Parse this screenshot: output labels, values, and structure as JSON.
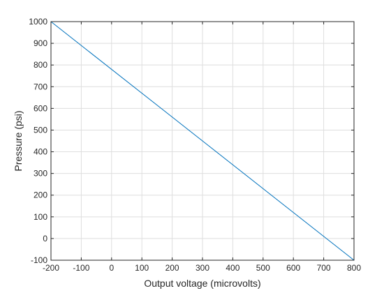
{
  "chart_data": {
    "type": "line",
    "title": "",
    "xlabel": "Output voltage (microvolts)",
    "ylabel": "Pressure (psi)",
    "xlim": [
      -200,
      800
    ],
    "ylim": [
      -100,
      1000
    ],
    "xticks": [
      -200,
      -100,
      0,
      100,
      200,
      300,
      400,
      500,
      600,
      700,
      800
    ],
    "yticks": [
      -100,
      0,
      100,
      200,
      300,
      400,
      500,
      600,
      700,
      800,
      900,
      1000
    ],
    "grid": true,
    "series": [
      {
        "x": [
          -200,
          800
        ],
        "y": [
          1000,
          -100
        ],
        "color": "#0072BD"
      }
    ],
    "colors": {
      "line": "#0072BD",
      "axes": "#262626",
      "grid": "#dedede",
      "background": "#ffffff"
    }
  }
}
